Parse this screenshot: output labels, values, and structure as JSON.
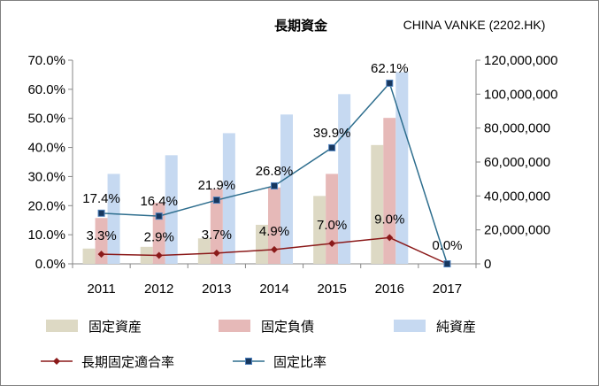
{
  "chart_data": {
    "type": "bar",
    "title": "長期資金",
    "company": "CHINA VANKE (2202.HK)",
    "categories": [
      "2011",
      "2012",
      "2013",
      "2014",
      "2015",
      "2016",
      "2017"
    ],
    "series": [
      {
        "name": "固定資産",
        "kind": "bar",
        "axis": "right",
        "color": "#DDD9C4",
        "values": [
          9000000,
          10000000,
          15000000,
          23000000,
          40000000,
          70000000,
          0
        ]
      },
      {
        "name": "固定負債",
        "kind": "bar",
        "axis": "right",
        "color": "#E6B9B8",
        "values": [
          27000000,
          36000000,
          44000000,
          45000000,
          53000000,
          86000000,
          0
        ]
      },
      {
        "name": "純資産",
        "kind": "bar",
        "axis": "right",
        "color": "#C6D9F1",
        "values": [
          53000000,
          64000000,
          77000000,
          88000000,
          100000000,
          113000000,
          0
        ]
      },
      {
        "name": "長期固定適合率",
        "kind": "line",
        "axis": "left",
        "color": "#8B1A1A",
        "marker": "diamond",
        "values": [
          3.3,
          2.9,
          3.7,
          4.9,
          7.0,
          9.0,
          0.0
        ],
        "labels": [
          "3.3%",
          "2.9%",
          "3.7%",
          "4.9%",
          "7.0%",
          "9.0%",
          "0.0%"
        ]
      },
      {
        "name": "固定比率",
        "kind": "line",
        "axis": "left",
        "color": "#2E6E8E",
        "marker": "square",
        "values": [
          17.4,
          16.4,
          21.9,
          26.8,
          39.9,
          62.1,
          0.0
        ],
        "labels": [
          "17.4%",
          "16.4%",
          "21.9%",
          "26.8%",
          "39.9%",
          "62.1%",
          ""
        ]
      }
    ],
    "y_left": {
      "min": 0,
      "max": 70,
      "step": 10,
      "ticks": [
        "0.0%",
        "10.0%",
        "20.0%",
        "30.0%",
        "40.0%",
        "50.0%",
        "60.0%",
        "70.0%"
      ]
    },
    "y_right": {
      "min": 0,
      "max": 120000000,
      "step": 20000000,
      "ticks": [
        "0",
        "20,000,000",
        "40,000,000",
        "60,000,000",
        "80,000,000",
        "100,000,000",
        "120,000,000"
      ]
    },
    "legend": {
      "position": "bottom",
      "rows": [
        [
          "固定資産",
          "固定負債",
          "純資産"
        ],
        [
          "長期固定適合率",
          "固定比率"
        ]
      ]
    },
    "grid": false
  }
}
